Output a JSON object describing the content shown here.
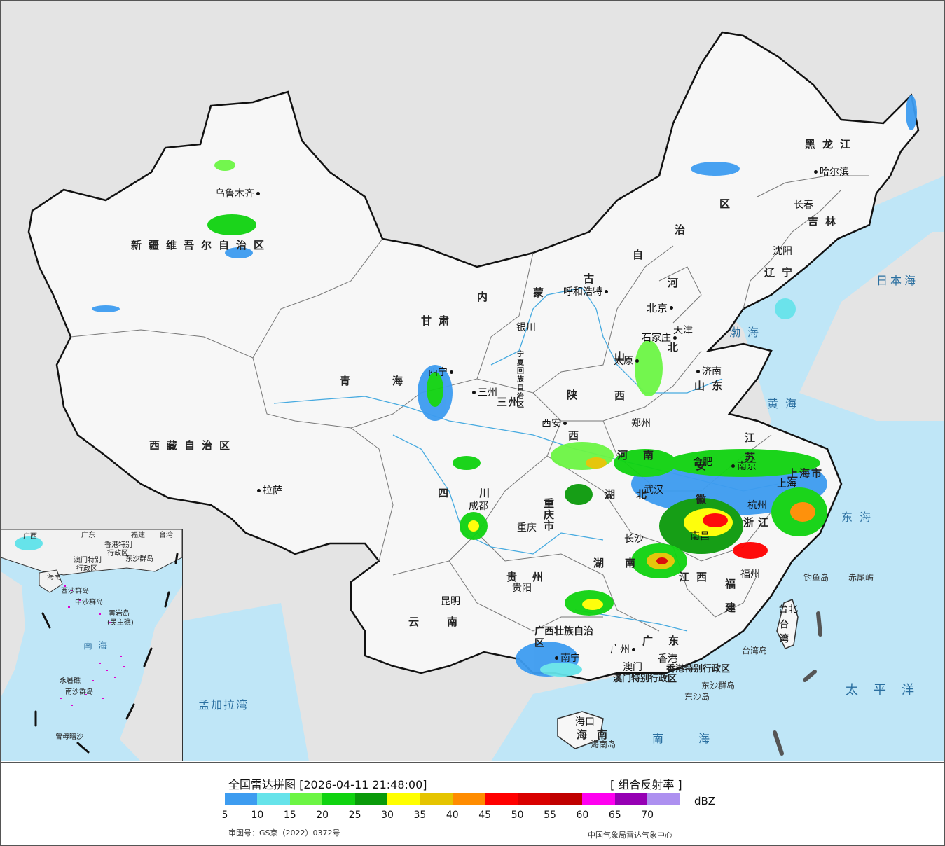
{
  "header": {
    "title": "全国雷达拼图 [2026-04-11 21:48:00]",
    "product": "[ 组合反射率 ]",
    "unit": "dBZ"
  },
  "legend": {
    "colors": [
      "#3d9cf0",
      "#66e3ea",
      "#6cf544",
      "#10d310",
      "#0a9a0a",
      "#ffff00",
      "#e5c400",
      "#ff8c00",
      "#ff0000",
      "#d90000",
      "#c00000",
      "#ff00f0",
      "#9600b4",
      "#ad90f0"
    ],
    "ticks": [
      "5",
      "10",
      "15",
      "20",
      "25",
      "30",
      "35",
      "40",
      "45",
      "50",
      "55",
      "60",
      "65",
      "70"
    ]
  },
  "footer": {
    "review_number": "审图号：GS京（2022）0372号",
    "credit": "中国气象局雷达气象中心"
  },
  "provinces": {
    "xinjiang": "新疆维吾尔自治区",
    "xizang": "西藏自治区",
    "qinghai": "青海",
    "gansu": "甘肃",
    "neimenggu_nei": "内",
    "neimenggu_meng": "蒙",
    "neimenggu_gu": "古",
    "neimenggu_zi": "自",
    "neimenggu_zhi": "治",
    "neimenggu_qu": "区",
    "heilongjiang": "黑龙江",
    "jilin": "吉林",
    "liaoning": "辽宁",
    "hebei_he": "河",
    "hebei_bei": "北",
    "shanxi": "山西",
    "shandong": "山东",
    "henan": "河南",
    "shaanxi": "陕",
    "shaanxi2": "西",
    "sichuan": "四川",
    "chongqing": "重庆市",
    "hubei": "湖北",
    "hunan": "湖南",
    "jiangxi": "江西",
    "anhui": "安徽",
    "jiangsu": "江苏",
    "zhejiang": "浙江",
    "fujian": "福建",
    "guizhou": "贵州",
    "yunnan": "云南",
    "guangxi": "广西壮族自治区",
    "guangdong": "广东",
    "hainan": "海南",
    "taiwan": "台湾",
    "shanghai": "上海市",
    "gansu_city": "三州",
    "ningxia": "宁夏回族自治区",
    "hongkong": "香港特别行政区",
    "macau": "澳门特别行政区"
  },
  "cities": {
    "urumqi": "乌鲁木齐",
    "lhasa": "拉萨",
    "xining": "西宁",
    "lanzhou": "三州",
    "yinchuan": "银川",
    "hohhot": "呼和浩特",
    "beijing": "北京",
    "tianjin": "天津",
    "shijiazhuang": "石家庄",
    "taiyuan": "太原",
    "jinan": "济南",
    "zhengzhou": "郑州",
    "xian": "西安",
    "chengdu": "成都",
    "chongqing": "重庆",
    "wuhan": "武汉",
    "hefei": "合肥",
    "nanjing": "南京",
    "shanghai": "上海",
    "hangzhou": "杭州",
    "nanchang": "南昌",
    "changsha": "长沙",
    "fuzhou": "福州",
    "taipei": "台北",
    "guiyang": "贵阳",
    "kunming": "昆明",
    "nanning": "南宁",
    "guangzhou": "广州",
    "hongkong": "香港",
    "macau": "澳门",
    "haikou": "海口",
    "harbin": "哈尔滨",
    "changchun": "长春",
    "shenyang": "沈阳"
  },
  "seas": {
    "japan_sea": "日本海",
    "bohai": "渤海",
    "yellow_sea": "黄海",
    "east_sea": "东海",
    "pacific": "太平洋",
    "south_sea": "南海",
    "bengal": "孟加拉湾"
  },
  "islands": {
    "diaoyu": "钓鱼岛",
    "chiwei": "赤尾屿",
    "taiwan_island": "台湾岛",
    "dongsha_islands": "东沙群岛",
    "dongsha_island": "东沙岛",
    "hainan_island": "海南岛"
  },
  "inset": {
    "guangxi": "广西",
    "guangdong": "广东",
    "fujian": "福建",
    "taiwan": "台湾",
    "hk": "香港特别",
    "hk2": "行政区",
    "macau": "澳门特别",
    "macau2": "行政区",
    "dongsha": "东沙群岛",
    "hainan": "海南",
    "xisha": "西沙群岛",
    "zhongsha": "中沙群岛",
    "huangyan": "黄岩岛",
    "huangyan2": "(民主礁)",
    "nanhai": "南海",
    "yongshu": "永暑礁",
    "nansha": "南沙群岛",
    "zengmu": "曾母暗沙"
  }
}
